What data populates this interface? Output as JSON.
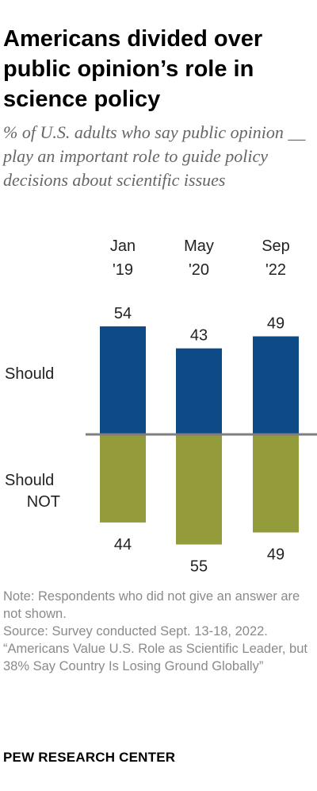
{
  "title": "Americans divided over public opinion’s role in science policy",
  "subtitle": "% of U.S. adults who say public opinion __ play an important role to guide policy decisions about scientific issues",
  "notes": {
    "note": "Note: Respondents who did not give an answer are not shown.",
    "source": "Source: Survey conducted Sept. 13-18, 2022.",
    "report": "“Americans Value U.S. Role as Scientific Leader, but 38% Say Country Is Losing Ground Globally”"
  },
  "brand": "PEW RESEARCH CENTER",
  "colors": {
    "should": "#0e4a86",
    "should_not": "#939b3b",
    "baseline": "#7f7f7f"
  },
  "chart_data": {
    "type": "bar",
    "categories": [
      [
        "Jan",
        "'19"
      ],
      [
        "May",
        "'20"
      ],
      [
        "Sep",
        "'22"
      ]
    ],
    "series": [
      {
        "name": "Should",
        "values": [
          54,
          43,
          49
        ],
        "direction": "up"
      },
      {
        "name": "Should NOT",
        "values": [
          44,
          55,
          49
        ],
        "direction": "down"
      }
    ],
    "ylim": [
      -60,
      60
    ],
    "grid": false,
    "legend": "series labels at left of bars"
  }
}
